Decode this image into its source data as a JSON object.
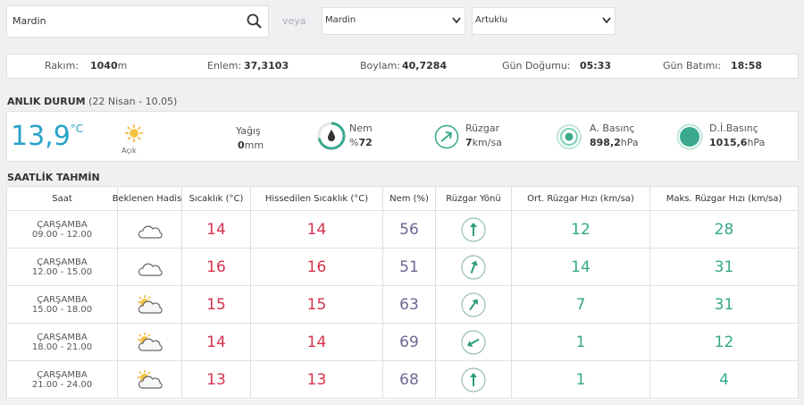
{
  "search": {
    "input": "Mardin",
    "or": "veya",
    "province": "Mardin",
    "district": "Artuklu"
  },
  "info": [
    {
      "label": "Rakım:",
      "value": 1040,
      "unit": "m"
    },
    {
      "label": "Enlem:",
      "value": "37,3103"
    },
    {
      "label": "Boylam:",
      "value": "40,7284"
    },
    {
      "label": "Gün Doğumu:",
      "value": "05:33"
    },
    {
      "label": "Gün Batımı:",
      "value": "18:58"
    }
  ],
  "current": {
    "title": "ANLIK DURUM",
    "date": "(22 Nisan - 10.05)",
    "temp": "13,9",
    "temp_unit": "°C",
    "condition": "Açık",
    "precip": {
      "label": "Yağış",
      "value": 0,
      "unit": "mm"
    },
    "humidity": {
      "label": "Nem",
      "prefix": "%",
      "value": 72
    },
    "wind": {
      "label": "Rüzgar",
      "value": 7,
      "unit": "km/sa"
    },
    "pressure": {
      "label": "A. Basınç",
      "value": "898,2",
      "unit": "hPa"
    },
    "sea_pressure": {
      "label": "D.İ.Basınç",
      "value": "1015,6",
      "unit": "hPa"
    }
  },
  "hourly": {
    "title": "SAATLİK TAHMİN",
    "headers": [
      "Saat",
      "Beklenen Hadise",
      "Sıcaklık (°C)",
      "Hissedilen Sıcaklık (°C)",
      "Nem (%)",
      "Rüzgar Yönü",
      "Ort. Rüzgar Hızı (km/sa)",
      "Maks. Rüzgar Hızı (km/sa)"
    ],
    "rows": [
      {
        "day": "ÇARŞAMBA",
        "time": "09.00 - 12.00",
        "icon": "cloudy",
        "temp": 14,
        "feels": 14,
        "humidity": 56,
        "wind_dir": 0,
        "wind_avg": 12,
        "wind_max": 28
      },
      {
        "day": "ÇARŞAMBA",
        "time": "12.00 - 15.00",
        "icon": "cloudy",
        "temp": 16,
        "feels": 16,
        "humidity": 51,
        "wind_dir": 20,
        "wind_avg": 14,
        "wind_max": 31
      },
      {
        "day": "ÇARŞAMBA",
        "time": "15.00 - 18.00",
        "icon": "partly-sunny",
        "temp": 15,
        "feels": 15,
        "humidity": 63,
        "wind_dir": 35,
        "wind_avg": 7,
        "wind_max": 31
      },
      {
        "day": "ÇARŞAMBA",
        "time": "18.00 - 21.00",
        "icon": "partly-sunny",
        "temp": 14,
        "feels": 14,
        "humidity": 69,
        "wind_dir": 240,
        "wind_avg": 1,
        "wind_max": 12
      },
      {
        "day": "ÇARŞAMBA",
        "time": "21.00 - 24.00",
        "icon": "partly-sunny",
        "temp": 13,
        "feels": 13,
        "humidity": 68,
        "wind_dir": 0,
        "wind_avg": 1,
        "wind_max": 4
      }
    ]
  }
}
